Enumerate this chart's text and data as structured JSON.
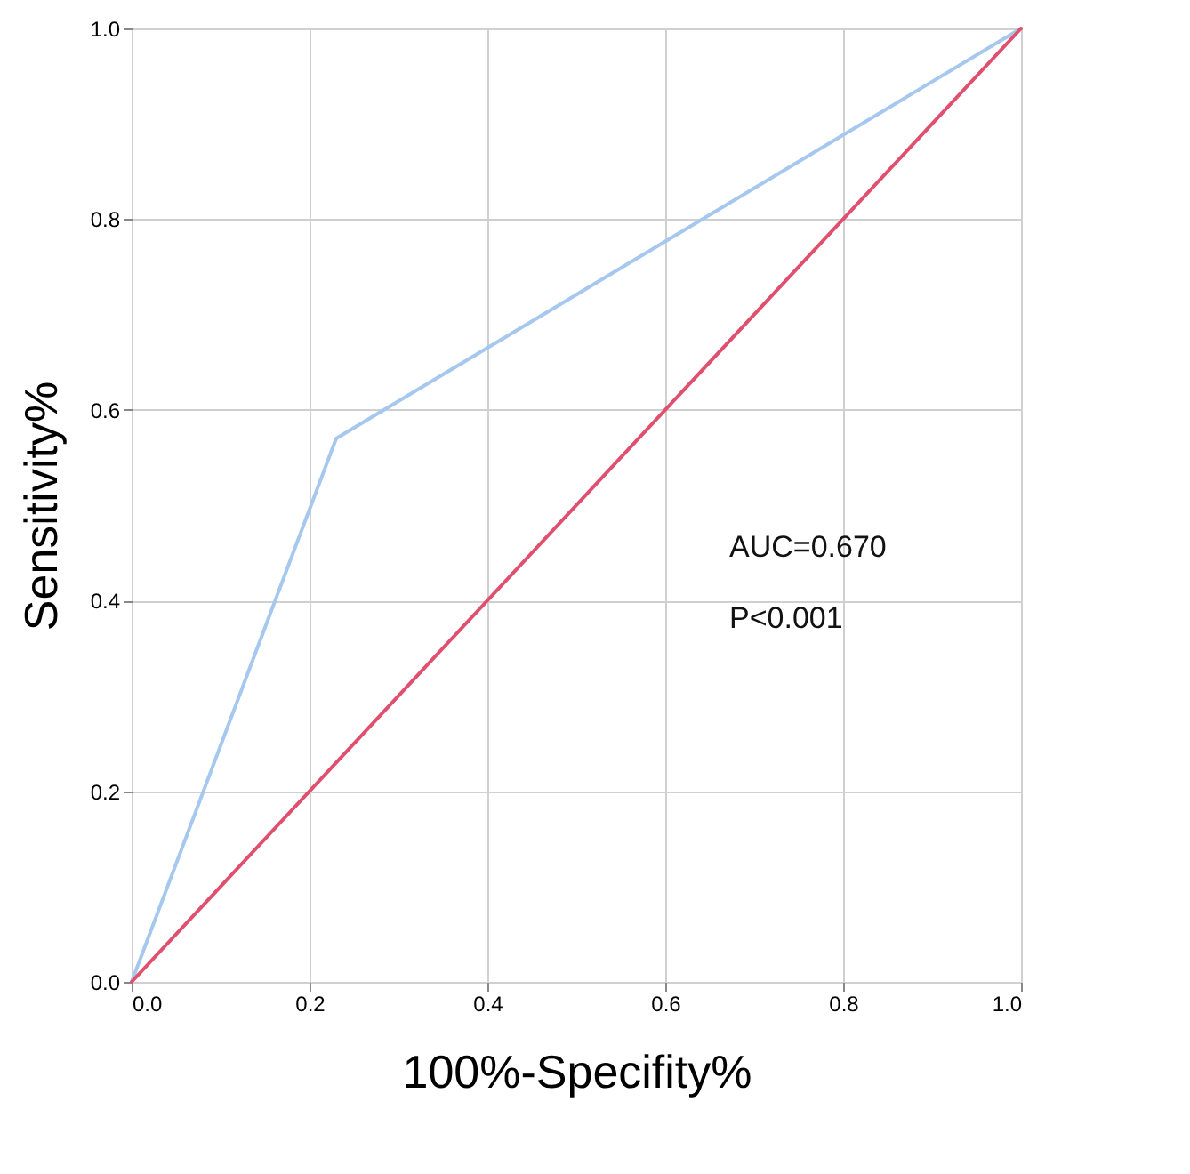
{
  "chart_data": {
    "type": "line",
    "xlabel": "100%-Specifity%",
    "ylabel": "Sensitivity%",
    "series": [
      {
        "color": "#a6c8ee",
        "x": [
          0,
          0.23,
          1
        ],
        "values": [
          0,
          0.57,
          1
        ]
      },
      {
        "color": "#e0506e",
        "x": [
          0,
          1
        ],
        "values": [
          0,
          1
        ]
      }
    ],
    "xlim": [
      0,
      1
    ],
    "ylim": [
      0,
      1
    ],
    "xticks": [
      {
        "value": 0,
        "label": "0.0"
      },
      {
        "value": 0.2,
        "label": "0.2"
      },
      {
        "value": 0.4,
        "label": "0.4"
      },
      {
        "value": 0.6,
        "label": "0.6"
      },
      {
        "value": 0.8,
        "label": "0.8"
      },
      {
        "value": 1,
        "label": "1.0"
      }
    ],
    "yticks": [
      {
        "value": 0,
        "label": "0.0"
      },
      {
        "value": 0.2,
        "label": "0.2"
      },
      {
        "value": 0.4,
        "label": "0.4"
      },
      {
        "value": 0.6,
        "label": "0.6"
      },
      {
        "value": 0.8,
        "label": "0.8"
      },
      {
        "value": 1,
        "label": "1.0"
      }
    ],
    "grid": true,
    "marker": "none",
    "line_style": "solid",
    "annotations": [
      "AUC=0.670",
      "P<0.001"
    ]
  }
}
